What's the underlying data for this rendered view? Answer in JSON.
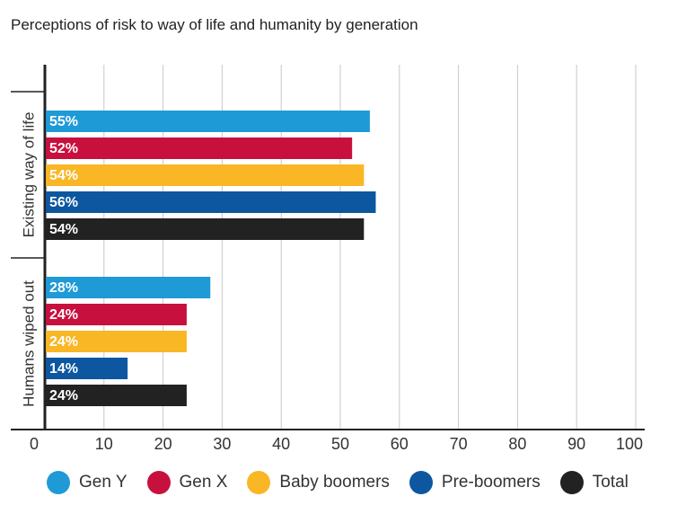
{
  "title": "Perceptions of risk to way of life and humanity by generation",
  "chart_data": {
    "type": "bar",
    "orientation": "horizontal",
    "title": "Perceptions of risk to way of life and humanity by generation",
    "xlim": [
      0,
      100
    ],
    "x_ticks": [
      "0",
      "10",
      "20",
      "30",
      "40",
      "50",
      "60",
      "70",
      "80",
      "90",
      "100"
    ],
    "grid": true,
    "legend_position": "bottom",
    "categories": [
      "Existing way of life",
      "Humans wiped out"
    ],
    "series": [
      {
        "name": "Gen Y",
        "color": "#1e9ad6",
        "values": [
          55,
          28
        ],
        "labels": [
          "55%",
          "28%"
        ]
      },
      {
        "name": "Gen X",
        "color": "#c8103e",
        "values": [
          52,
          24
        ],
        "labels": [
          "52%",
          "24%"
        ]
      },
      {
        "name": "Baby boomers",
        "color": "#f9b625",
        "values": [
          54,
          24
        ],
        "labels": [
          "54%",
          "24%"
        ]
      },
      {
        "name": "Pre-boomers",
        "color": "#0d57a0",
        "values": [
          56,
          14
        ],
        "labels": [
          "56%",
          "14%"
        ]
      },
      {
        "name": "Total",
        "color": "#222222",
        "values": [
          54,
          24
        ],
        "labels": [
          "54%",
          "24%"
        ]
      }
    ]
  }
}
